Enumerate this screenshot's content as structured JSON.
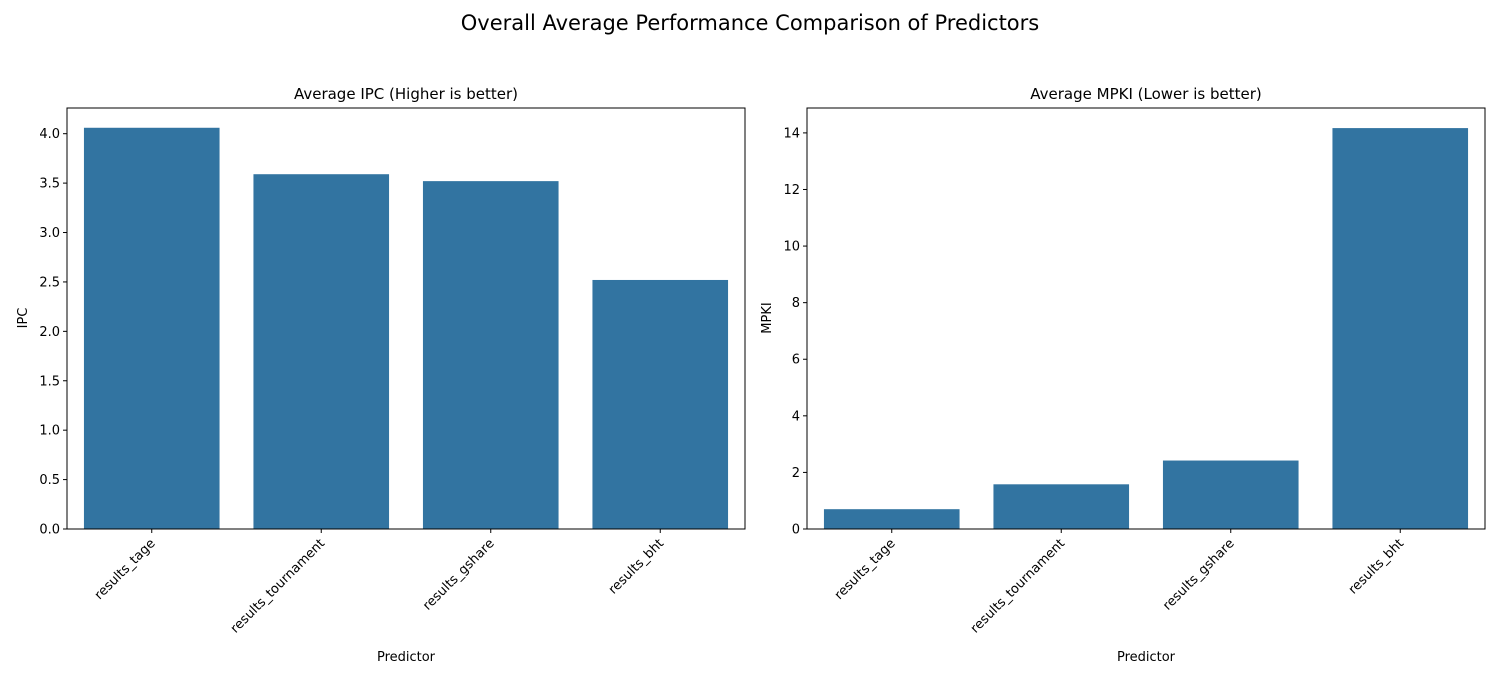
{
  "figure": {
    "suptitle": "Overall Average Performance Comparison of Predictors",
    "bar_color": "#3274a1",
    "background": "#ffffff"
  },
  "chart_data": [
    {
      "type": "bar",
      "title": "Average IPC (Higher is better)",
      "xlabel": "Predictor",
      "ylabel": "IPC",
      "categories": [
        "results_tage",
        "results_tournament",
        "results_gshare",
        "results_bht"
      ],
      "values": [
        4.06,
        3.59,
        3.52,
        2.52
      ],
      "ylim": [
        0,
        4.26
      ],
      "yticks": [
        0.0,
        0.5,
        1.0,
        1.5,
        2.0,
        2.5,
        3.0,
        3.5,
        4.0
      ],
      "ytick_labels": [
        "0.0",
        "0.5",
        "1.0",
        "1.5",
        "2.0",
        "2.5",
        "3.0",
        "3.5",
        "4.0"
      ],
      "grid": false
    },
    {
      "type": "bar",
      "title": "Average MPKI (Lower is better)",
      "xlabel": "Predictor",
      "ylabel": "MPKI",
      "categories": [
        "results_tage",
        "results_tournament",
        "results_gshare",
        "results_bht"
      ],
      "values": [
        0.7,
        1.58,
        2.42,
        14.17
      ],
      "ylim": [
        0,
        14.88
      ],
      "yticks": [
        0,
        2,
        4,
        6,
        8,
        10,
        12,
        14
      ],
      "ytick_labels": [
        "0",
        "2",
        "4",
        "6",
        "8",
        "10",
        "12",
        "14"
      ],
      "grid": false
    }
  ]
}
